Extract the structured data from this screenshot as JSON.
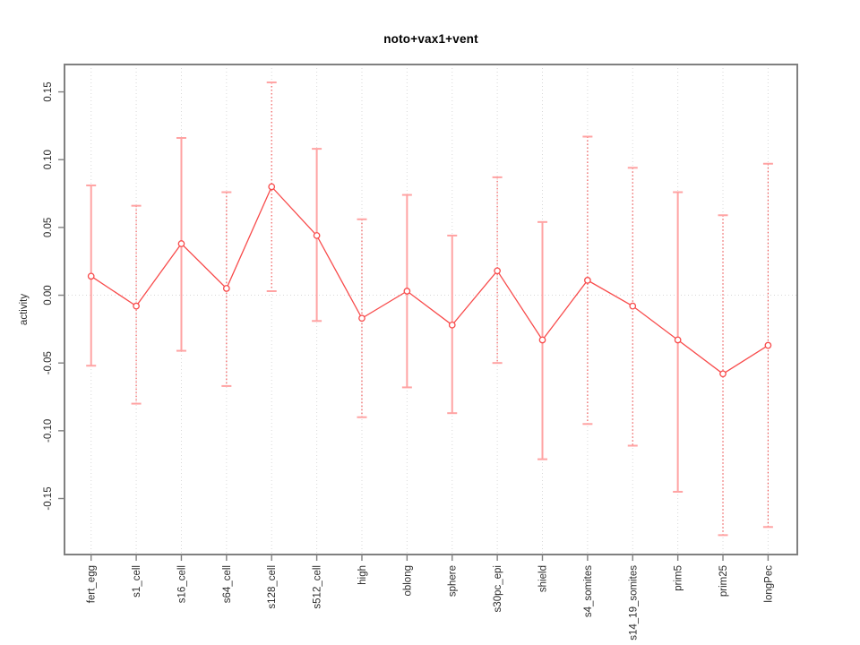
{
  "chart_data": {
    "type": "line",
    "title": "noto+vax1+vent",
    "xlabel": "",
    "ylabel": "activity",
    "categories": [
      "fert_egg",
      "s1_cell",
      "s16_cell",
      "s64_cell",
      "s128_cell",
      "s512_cell",
      "high",
      "oblong",
      "sphere",
      "s30pc_epi",
      "shield",
      "s4_somites",
      "s14_19_somites",
      "prim5",
      "prim25",
      "longPec"
    ],
    "values": [
      0.014,
      -0.008,
      0.038,
      0.005,
      0.08,
      0.044,
      -0.017,
      0.003,
      -0.022,
      0.018,
      -0.033,
      0.011,
      -0.008,
      -0.033,
      -0.058,
      -0.037
    ],
    "error_low": [
      -0.052,
      -0.08,
      -0.041,
      -0.067,
      0.003,
      -0.019,
      -0.09,
      -0.068,
      -0.087,
      -0.05,
      -0.121,
      -0.095,
      -0.111,
      -0.145,
      -0.177,
      -0.171
    ],
    "error_high": [
      0.081,
      0.066,
      0.116,
      0.076,
      0.157,
      0.108,
      0.056,
      0.074,
      0.044,
      0.087,
      0.054,
      0.117,
      0.094,
      0.076,
      0.059,
      0.097
    ],
    "error_bar_styles": [
      "solid",
      "dotted",
      "solid",
      "dotted",
      "dotted",
      "solid",
      "dotted",
      "solid",
      "solid",
      "dotted",
      "solid",
      "dotted",
      "dotted",
      "solid",
      "dotted",
      "dotted"
    ],
    "y_ticks": [
      0.15,
      0.1,
      0.05,
      0.0,
      -0.05,
      -0.1,
      -0.15
    ],
    "y_tick_labels": [
      "0.15",
      "0.10",
      "0.05",
      "0.00",
      "-0.05",
      "-0.10",
      "-0.15"
    ],
    "ylim": [
      -0.1913,
      0.1702
    ],
    "grid": "dotted vertical line at every category, dotted horizontal line at y=0",
    "legend_position": "none",
    "marker": "open-circle",
    "colors": {
      "series_line": "#f84b4b",
      "point_stroke": "#f84b4b",
      "error_bar_solid": "#ffa3a3",
      "error_bar_dotted": "#f25c5c",
      "error_cap": "#ffa3a3",
      "plot_border": "#808080",
      "tick": "#808080",
      "gridline": "#d8d8d8",
      "tick_label": "#2b2b2b",
      "title": "#000000",
      "background": "#ffffff"
    }
  }
}
